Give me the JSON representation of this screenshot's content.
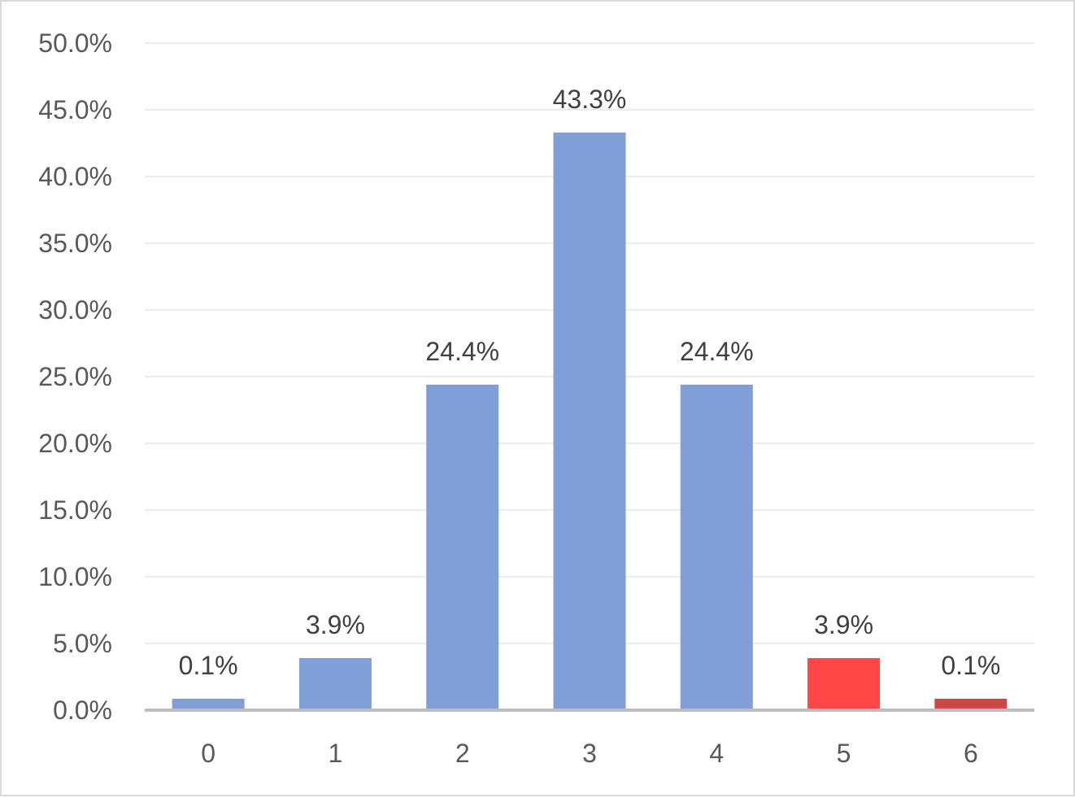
{
  "chart_data": {
    "type": "bar",
    "title": "",
    "xlabel": "",
    "ylabel": "",
    "categories": [
      "0",
      "1",
      "2",
      "3",
      "4",
      "5",
      "6"
    ],
    "values": [
      0.1,
      3.9,
      24.4,
      43.3,
      24.4,
      3.9,
      0.1
    ],
    "data_labels": [
      "0.1%",
      "3.9%",
      "24.4%",
      "43.3%",
      "24.4%",
      "3.9%",
      "0.1%"
    ],
    "bar_colors": [
      "#7f9fd6",
      "#7f9fd6",
      "#7f9fd6",
      "#7f9fd6",
      "#7f9fd6",
      "#ff4747",
      "#d04646"
    ],
    "ylim": [
      0,
      50
    ],
    "y_ticks": [
      0,
      5,
      10,
      15,
      20,
      25,
      30,
      35,
      40,
      45,
      50
    ],
    "y_tick_labels": [
      "0.0%",
      "5.0%",
      "10.0%",
      "15.0%",
      "20.0%",
      "25.0%",
      "30.0%",
      "35.0%",
      "40.0%",
      "45.0%",
      "50.0%"
    ],
    "grid": true,
    "legend": "none"
  }
}
